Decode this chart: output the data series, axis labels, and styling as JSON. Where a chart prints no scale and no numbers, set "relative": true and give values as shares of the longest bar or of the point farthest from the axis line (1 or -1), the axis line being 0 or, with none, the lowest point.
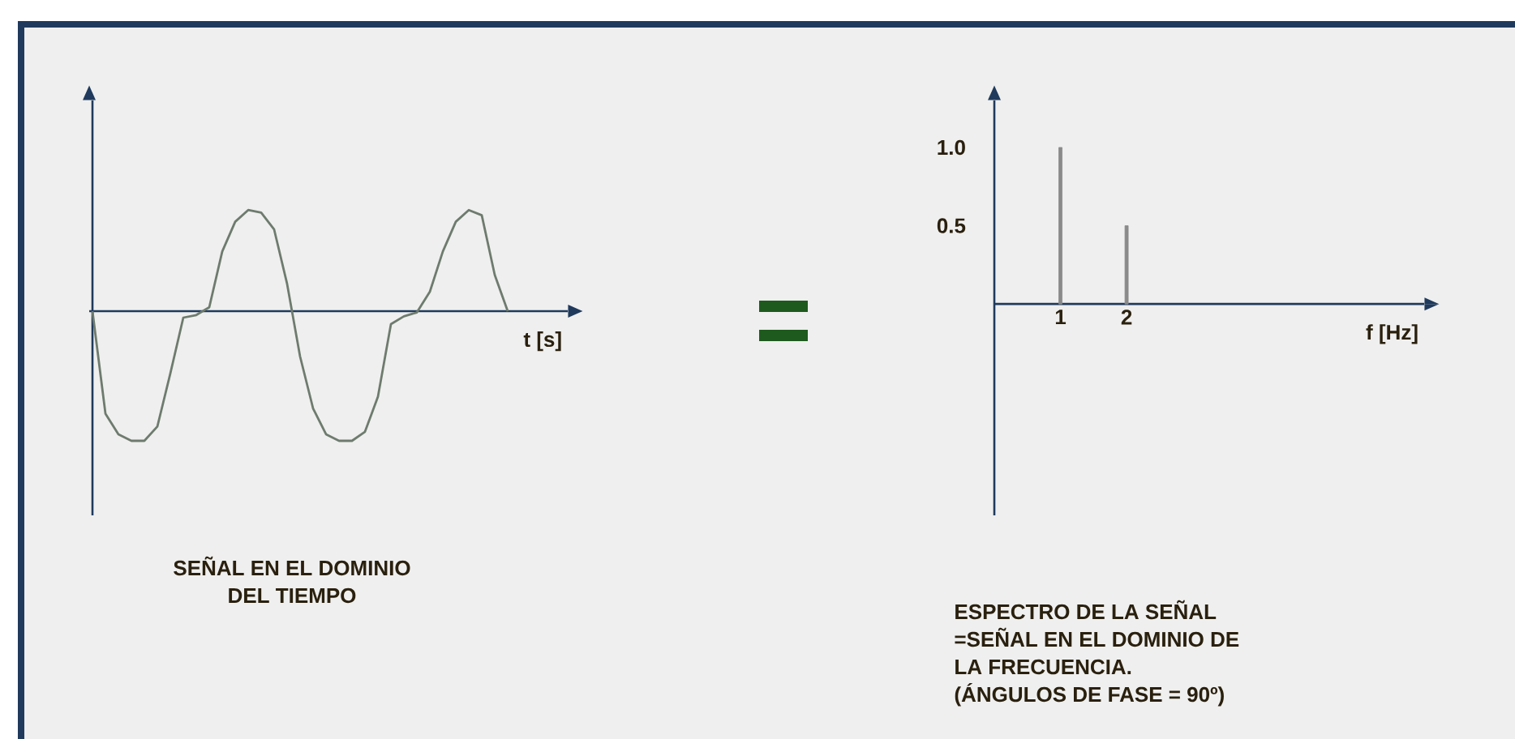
{
  "chart_data": [
    {
      "type": "line",
      "relative": true,
      "xlabel": "t [s]",
      "categories": [
        null,
        null,
        null,
        null,
        null,
        null,
        null,
        null,
        null,
        null,
        null,
        null,
        null,
        null,
        null,
        null,
        null,
        null,
        null,
        null,
        null,
        null,
        null,
        null,
        null,
        null,
        null,
        null,
        null,
        null,
        null,
        null,
        null
      ],
      "series": [
        {
          "color": "#6e7b6e",
          "values": [
            0,
            -0.79,
            -0.95,
            -1,
            -1,
            -0.89,
            -0.48,
            -0.05,
            -0.03,
            0.03,
            0.46,
            0.69,
            0.78,
            0.76,
            0.63,
            0.21,
            -0.35,
            -0.75,
            -0.95,
            -1,
            -1,
            -0.93,
            -0.66,
            -0.1,
            -0.04,
            -0.01,
            0.15,
            0.46,
            0.69,
            0.78,
            0.74,
            0.28,
            0
          ]
        }
      ],
      "annotations": [
        "SEÑAL EN EL DOMINIO",
        "DEL TIEMPO"
      ]
    },
    {
      "type": "bar",
      "xlabel": "f [Hz]",
      "x": [
        1,
        2
      ],
      "values": [
        1.0,
        0.5
      ],
      "color": "#8a8a8a",
      "xlim": [
        0,
        6.5
      ],
      "ylim": [
        -1.35,
        1.3
      ],
      "xticks": [
        1,
        2
      ],
      "yticks": [
        0.5,
        {
          "value": 1.0,
          "label": "1.0"
        }
      ],
      "annotations": [
        "ESPECTRO DE LA SEÑAL",
        "=SEÑAL EN EL  DOMINIO DE",
        "LA FRECUENCIA.",
        "(ÁNGULOS DE FASE = 90º)"
      ]
    }
  ]
}
